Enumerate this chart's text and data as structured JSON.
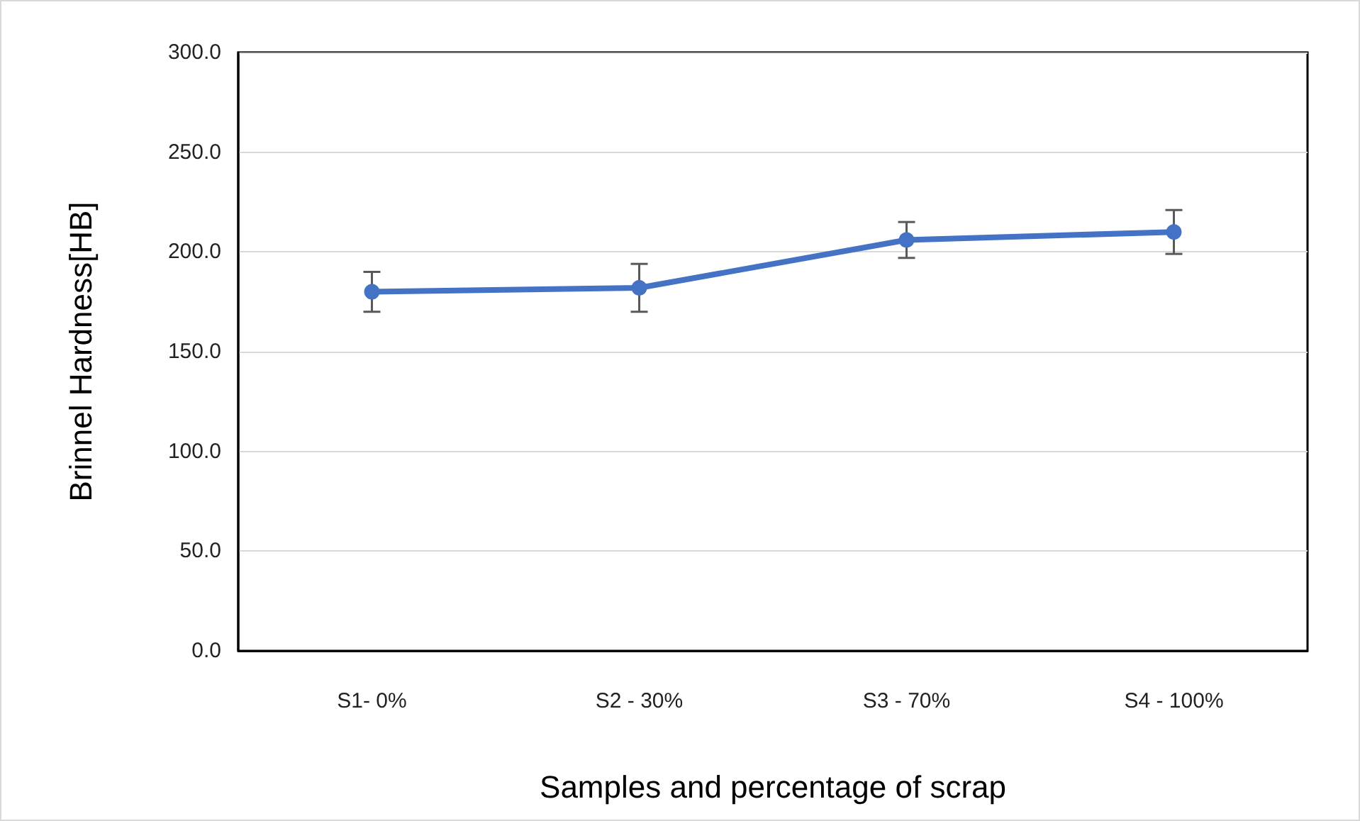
{
  "chart_data": {
    "type": "line",
    "xlabel": "Samples and percentage of scrap",
    "ylabel": "Brinnel Hardness[HB]",
    "categories": [
      "S1- 0%",
      "S2 - 30%",
      "S3 - 70%",
      "S4 - 100%"
    ],
    "series": [
      {
        "color": "#4472c4",
        "values": [
          180,
          182,
          206,
          210
        ],
        "errors": [
          10,
          12,
          9,
          11
        ]
      }
    ],
    "ylim": [
      0,
      300
    ],
    "yticks": [
      {
        "value": 0,
        "label": "0.0"
      },
      {
        "value": 50,
        "label": "50.0"
      },
      {
        "value": 100,
        "label": "100.0"
      },
      {
        "value": 150,
        "label": "150.0"
      },
      {
        "value": 200,
        "label": "200.0"
      },
      {
        "value": 250,
        "label": "250.0"
      },
      {
        "value": 300,
        "label": "300.0"
      }
    ],
    "grid": "y",
    "marker": "circle",
    "line_style": "solid"
  }
}
